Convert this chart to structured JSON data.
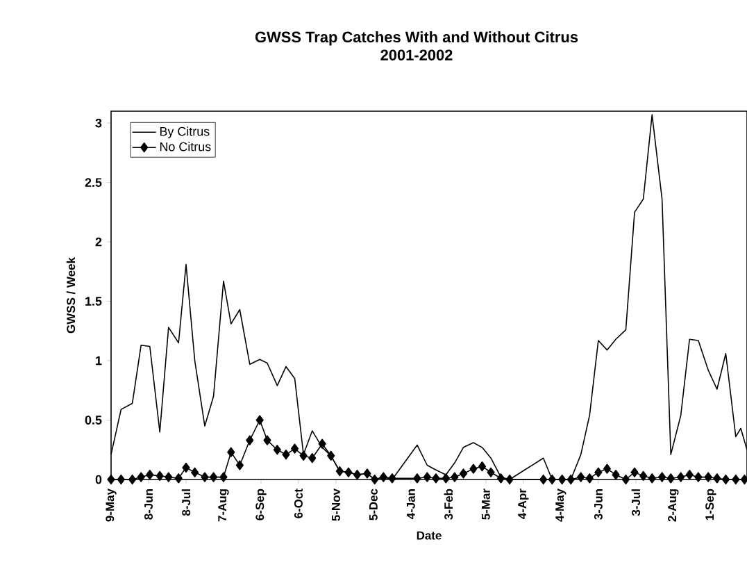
{
  "chart_data": {
    "type": "line",
    "title": "GWSS Trap Catches With and Without Citrus",
    "subtitle": "2001-2002",
    "xlabel": "Date",
    "ylabel": "GWSS / Week",
    "xlim": [
      "2001-05-09",
      "2002-09-30"
    ],
    "ylim": [
      0,
      3.1
    ],
    "xticks": [
      {
        "value": "2001-05-09",
        "label": "9-May"
      },
      {
        "value": "2001-06-08",
        "label": "8-Jun"
      },
      {
        "value": "2001-07-08",
        "label": "8-Jul"
      },
      {
        "value": "2001-08-07",
        "label": "7-Aug"
      },
      {
        "value": "2001-09-06",
        "label": "6-Sep"
      },
      {
        "value": "2001-10-06",
        "label": "6-Oct"
      },
      {
        "value": "2001-11-05",
        "label": "5-Nov"
      },
      {
        "value": "2001-12-05",
        "label": "5-Dec"
      },
      {
        "value": "2002-01-04",
        "label": "4-Jan"
      },
      {
        "value": "2002-02-03",
        "label": "3-Feb"
      },
      {
        "value": "2002-03-05",
        "label": "5-Mar"
      },
      {
        "value": "2002-04-04",
        "label": "4-Apr"
      },
      {
        "value": "2002-05-04",
        "label": "4-May"
      },
      {
        "value": "2002-06-03",
        "label": "3-Jun"
      },
      {
        "value": "2002-07-03",
        "label": "3-Jul"
      },
      {
        "value": "2002-08-02",
        "label": "2-Aug"
      },
      {
        "value": "2002-09-01",
        "label": "1-Sep"
      }
    ],
    "yticks": [
      0,
      0.5,
      1,
      1.5,
      2,
      2.5,
      3
    ],
    "grid": false,
    "legend": "top left",
    "series": [
      {
        "name": "By Citrus",
        "color": "#000000",
        "marker": "none",
        "x": [
          "2001-05-09",
          "2001-05-17",
          "2001-05-26",
          "2001-06-02",
          "2001-06-09",
          "2001-06-17",
          "2001-06-24",
          "2001-07-02",
          "2001-07-08",
          "2001-07-15",
          "2001-07-23",
          "2001-07-30",
          "2001-08-07",
          "2001-08-13",
          "2001-08-20",
          "2001-08-28",
          "2001-09-05",
          "2001-09-11",
          "2001-09-19",
          "2001-09-26",
          "2001-10-03",
          "2001-10-10",
          "2001-10-17",
          "2001-10-25",
          "2001-11-01",
          "2001-11-08",
          "2001-11-15",
          "2001-11-22",
          "2001-11-30",
          "2001-12-06",
          "2001-12-13",
          "2001-12-20",
          "2002-01-09",
          "2002-01-17",
          "2002-01-24",
          "2002-02-01",
          "2002-02-08",
          "2002-02-15",
          "2002-02-23",
          "2002-03-02",
          "2002-03-09",
          "2002-03-17",
          "2002-03-24",
          "2002-04-20",
          "2002-04-27",
          "2002-05-05",
          "2002-05-12",
          "2002-05-20",
          "2002-05-27",
          "2002-06-03",
          "2002-06-10",
          "2002-06-17",
          "2002-06-25",
          "2002-07-02",
          "2002-07-09",
          "2002-07-16",
          "2002-07-24",
          "2002-07-31",
          "2002-08-08",
          "2002-08-15",
          "2002-08-22",
          "2002-08-30",
          "2002-09-06",
          "2002-09-13",
          "2002-09-21",
          "2002-09-25",
          "2002-09-30"
        ],
        "values": [
          0.21,
          0.59,
          0.64,
          1.13,
          1.12,
          0.4,
          1.28,
          1.15,
          1.81,
          1.0,
          0.45,
          0.7,
          1.67,
          1.31,
          1.43,
          0.97,
          1.01,
          0.98,
          0.79,
          0.95,
          0.85,
          0.21,
          0.41,
          0.27,
          0.2,
          0.07,
          0.06,
          0.04,
          0.05,
          0,
          0.02,
          0,
          0.29,
          0.12,
          0.08,
          0.04,
          0.14,
          0.27,
          0.31,
          0.27,
          0.18,
          0.02,
          0,
          0.18,
          0,
          0,
          0,
          0.21,
          0.54,
          1.17,
          1.09,
          1.18,
          1.26,
          2.25,
          2.36,
          3.07,
          2.36,
          0.21,
          0.54,
          1.18,
          1.17,
          0.92,
          0.76,
          1.06,
          0.36,
          0.43,
          0.25
        ]
      },
      {
        "name": "No Citrus",
        "color": "#000000",
        "marker": "diamond",
        "x": [
          "2001-05-09",
          "2001-05-17",
          "2001-05-26",
          "2001-06-02",
          "2001-06-09",
          "2001-06-17",
          "2001-06-24",
          "2001-07-02",
          "2001-07-08",
          "2001-07-15",
          "2001-07-23",
          "2001-07-30",
          "2001-08-07",
          "2001-08-13",
          "2001-08-20",
          "2001-08-28",
          "2001-09-05",
          "2001-09-11",
          "2001-09-19",
          "2001-09-26",
          "2001-10-03",
          "2001-10-10",
          "2001-10-17",
          "2001-10-25",
          "2001-11-01",
          "2001-11-08",
          "2001-11-15",
          "2001-11-22",
          "2001-11-30",
          "2001-12-06",
          "2001-12-13",
          "2001-12-20",
          "2002-01-09",
          "2002-01-17",
          "2002-01-24",
          "2002-02-01",
          "2002-02-08",
          "2002-02-15",
          "2002-02-23",
          "2002-03-02",
          "2002-03-09",
          "2002-03-17",
          "2002-03-24",
          "2002-04-20",
          "2002-04-27",
          "2002-05-05",
          "2002-05-12",
          "2002-05-20",
          "2002-05-27",
          "2002-06-03",
          "2002-06-10",
          "2002-06-17",
          "2002-06-25",
          "2002-07-02",
          "2002-07-09",
          "2002-07-16",
          "2002-07-24",
          "2002-07-31",
          "2002-08-08",
          "2002-08-15",
          "2002-08-22",
          "2002-08-30",
          "2002-09-06",
          "2002-09-13",
          "2002-09-21",
          "2002-09-28"
        ],
        "values": [
          0,
          0,
          0,
          0.02,
          0.04,
          0.03,
          0.02,
          0.01,
          0.1,
          0.06,
          0.02,
          0.02,
          0.02,
          0.23,
          0.12,
          0.33,
          0.5,
          0.33,
          0.25,
          0.21,
          0.26,
          0.2,
          0.18,
          0.3,
          0.2,
          0.07,
          0.06,
          0.04,
          0.05,
          0,
          0.02,
          0.01,
          0.01,
          0.02,
          0.01,
          0.01,
          0.02,
          0.05,
          0.09,
          0.11,
          0.06,
          0.01,
          0,
          0,
          0,
          0,
          0,
          0.02,
          0.01,
          0.06,
          0.09,
          0.04,
          0,
          0.06,
          0.03,
          0.01,
          0.02,
          0.01,
          0.02,
          0.04,
          0.02,
          0.02,
          0.01,
          0,
          0,
          0
        ]
      }
    ]
  }
}
